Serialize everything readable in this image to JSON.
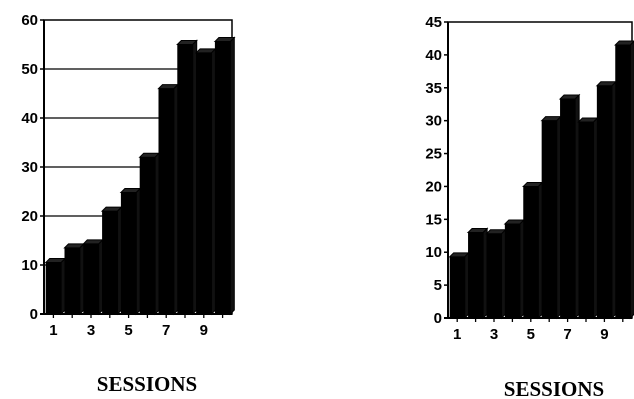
{
  "chart_data": [
    {
      "type": "bar",
      "categories": [
        "1",
        "2",
        "3",
        "4",
        "5",
        "6",
        "7",
        "8",
        "9",
        "10"
      ],
      "x_tick_labels": [
        "1",
        "3",
        "5",
        "7",
        "9"
      ],
      "values": [
        10.5,
        13.5,
        14.3,
        21,
        24.8,
        32,
        46,
        55,
        53.3,
        55.6
      ],
      "title": "",
      "xlabel": "SESSIONS",
      "ylabel": "",
      "ylim": [
        0,
        60
      ],
      "y_ticks": [
        0,
        10,
        20,
        30,
        40,
        50,
        60
      ],
      "grid": true,
      "bar_color": "#000000"
    },
    {
      "type": "bar",
      "categories": [
        "1",
        "2",
        "3",
        "4",
        "5",
        "6",
        "7",
        "8",
        "9",
        "10"
      ],
      "x_tick_labels": [
        "1",
        "3",
        "5",
        "7",
        "9"
      ],
      "values": [
        9.3,
        13,
        12.8,
        14.3,
        20,
        30,
        33.3,
        29.8,
        35.3,
        41.5
      ],
      "title": "",
      "xlabel": "SESSIONS",
      "ylabel": "",
      "ylim": [
        0,
        45
      ],
      "y_ticks": [
        0,
        5,
        10,
        15,
        20,
        25,
        30,
        35,
        40,
        45
      ],
      "grid": false,
      "bar_color": "#000000"
    }
  ]
}
